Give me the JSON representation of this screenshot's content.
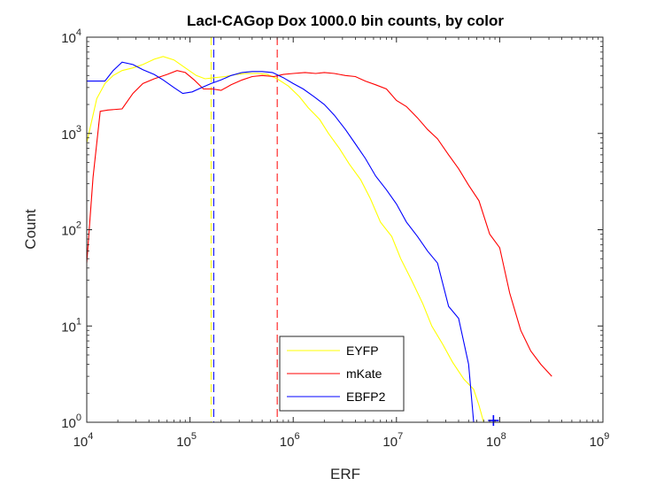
{
  "chart_data": {
    "type": "line",
    "title": "LacI-CAGop Dox 1000.0 bin counts, by color",
    "xlabel": "ERF",
    "ylabel": "Count",
    "x_scale": "log",
    "y_scale": "log",
    "xlim": [
      10000,
      1000000000
    ],
    "ylim": [
      1,
      10000
    ],
    "x_ticks": [
      {
        "base": "10",
        "exp": "4",
        "value": 10000
      },
      {
        "base": "10",
        "exp": "5",
        "value": 100000
      },
      {
        "base": "10",
        "exp": "6",
        "value": 1000000
      },
      {
        "base": "10",
        "exp": "7",
        "value": 10000000
      },
      {
        "base": "10",
        "exp": "8",
        "value": 100000000
      },
      {
        "base": "10",
        "exp": "9",
        "value": 1000000000
      }
    ],
    "y_ticks": [
      {
        "base": "10",
        "exp": "0",
        "value": 1
      },
      {
        "base": "10",
        "exp": "1",
        "value": 10
      },
      {
        "base": "10",
        "exp": "2",
        "value": 100
      },
      {
        "base": "10",
        "exp": "3",
        "value": 1000
      },
      {
        "base": "10",
        "exp": "4",
        "value": 10000
      }
    ],
    "grid": false,
    "legend_position": "bottom-center",
    "series": [
      {
        "name": "EYFP",
        "color": "#ffff00",
        "mean": 160000,
        "points": [
          [
            10000,
            800
          ],
          [
            12500,
            2300
          ],
          [
            15000,
            3300
          ],
          [
            18000,
            4000
          ],
          [
            22000,
            4500
          ],
          [
            28000,
            4800
          ],
          [
            35000,
            5200
          ],
          [
            45000,
            5900
          ],
          [
            55000,
            6300
          ],
          [
            70000,
            5800
          ],
          [
            90000,
            4800
          ],
          [
            115000,
            4000
          ],
          [
            140000,
            3700
          ],
          [
            175000,
            3800
          ],
          [
            220000,
            3900
          ],
          [
            280000,
            4100
          ],
          [
            350000,
            4200
          ],
          [
            450000,
            4200
          ],
          [
            560000,
            4100
          ],
          [
            700000,
            3700
          ],
          [
            900000,
            3100
          ],
          [
            1150000,
            2400
          ],
          [
            1400000,
            1850
          ],
          [
            1800000,
            1400
          ],
          [
            2200000,
            1000
          ],
          [
            2800000,
            700
          ],
          [
            3500000,
            480
          ],
          [
            4500000,
            330
          ],
          [
            5600000,
            210
          ],
          [
            7000000,
            120
          ],
          [
            9000000,
            85
          ],
          [
            11000000,
            50
          ],
          [
            14000000,
            30
          ],
          [
            18000000,
            17
          ],
          [
            22000000,
            10
          ],
          [
            28000000,
            6.5
          ],
          [
            35000000,
            4.2
          ],
          [
            45000000,
            2.8
          ],
          [
            56000000,
            2.2
          ],
          [
            63000000,
            1.5
          ],
          [
            70000000,
            1
          ]
        ]
      },
      {
        "name": "mKate",
        "color": "#ff0000",
        "mean": 700000,
        "points": [
          [
            10000,
            45
          ],
          [
            11500,
            350
          ],
          [
            13500,
            1700
          ],
          [
            16000,
            1750
          ],
          [
            22000,
            1800
          ],
          [
            28000,
            2600
          ],
          [
            35000,
            3300
          ],
          [
            45000,
            3700
          ],
          [
            60000,
            4100
          ],
          [
            75000,
            4500
          ],
          [
            90000,
            4300
          ],
          [
            110000,
            3600
          ],
          [
            135000,
            2900
          ],
          [
            165000,
            2900
          ],
          [
            200000,
            2800
          ],
          [
            250000,
            3200
          ],
          [
            320000,
            3600
          ],
          [
            400000,
            3900
          ],
          [
            500000,
            4000
          ],
          [
            650000,
            3900
          ],
          [
            800000,
            4100
          ],
          [
            1000000,
            4200
          ],
          [
            1300000,
            4300
          ],
          [
            1650000,
            4200
          ],
          [
            2000000,
            4300
          ],
          [
            2500000,
            4200
          ],
          [
            3200000,
            4000
          ],
          [
            4000000,
            3900
          ],
          [
            5000000,
            3500
          ],
          [
            6300000,
            3200
          ],
          [
            8000000,
            2900
          ],
          [
            10000000,
            2200
          ],
          [
            12500000,
            1900
          ],
          [
            16000000,
            1450
          ],
          [
            20000000,
            1100
          ],
          [
            25000000,
            880
          ],
          [
            32000000,
            600
          ],
          [
            40000000,
            430
          ],
          [
            50000000,
            290
          ],
          [
            63000000,
            200
          ],
          [
            80000000,
            90
          ],
          [
            100000000,
            65
          ],
          [
            125000000,
            22
          ],
          [
            160000000,
            9
          ],
          [
            200000000,
            5.5
          ],
          [
            250000000,
            4
          ],
          [
            320000000,
            3
          ]
        ]
      },
      {
        "name": "EBFP2",
        "color": "#0000ff",
        "mean": 170000,
        "points": [
          [
            10000,
            3500
          ],
          [
            12500,
            3500
          ],
          [
            15000,
            3500
          ],
          [
            18000,
            4500
          ],
          [
            22000,
            5500
          ],
          [
            28000,
            5200
          ],
          [
            35000,
            4600
          ],
          [
            45000,
            4100
          ],
          [
            55000,
            3600
          ],
          [
            70000,
            3000
          ],
          [
            85000,
            2600
          ],
          [
            105000,
            2700
          ],
          [
            130000,
            3000
          ],
          [
            160000,
            3300
          ],
          [
            200000,
            3600
          ],
          [
            250000,
            4000
          ],
          [
            320000,
            4300
          ],
          [
            400000,
            4400
          ],
          [
            500000,
            4400
          ],
          [
            630000,
            4300
          ],
          [
            800000,
            3800
          ],
          [
            1000000,
            3300
          ],
          [
            1250000,
            2900
          ],
          [
            1600000,
            2400
          ],
          [
            2000000,
            2000
          ],
          [
            2500000,
            1550
          ],
          [
            3200000,
            1100
          ],
          [
            4000000,
            780
          ],
          [
            5000000,
            550
          ],
          [
            6300000,
            360
          ],
          [
            8000000,
            260
          ],
          [
            10000000,
            185
          ],
          [
            12500000,
            120
          ],
          [
            16000000,
            85
          ],
          [
            20000000,
            60
          ],
          [
            25000000,
            45
          ],
          [
            32000000,
            16
          ],
          [
            40000000,
            12
          ],
          [
            50000000,
            4
          ],
          [
            56000000,
            1
          ]
        ]
      }
    ],
    "marker": {
      "x": 87000000,
      "y": 1,
      "color": "#0000ff"
    }
  }
}
